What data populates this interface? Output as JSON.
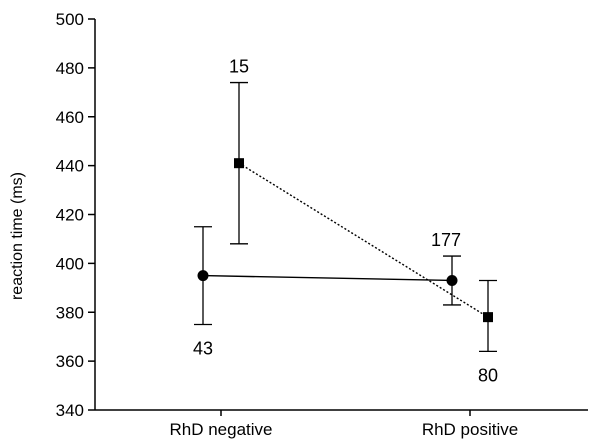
{
  "chart_data": {
    "type": "line",
    "title": "",
    "xlabel": "",
    "ylabel": "reaction time (ms)",
    "ylim": [
      340,
      500
    ],
    "yticks": [
      340,
      360,
      380,
      400,
      420,
      440,
      460,
      480,
      500
    ],
    "categories": [
      "RhD negative",
      "RhD positive"
    ],
    "grid": false,
    "legend": "none",
    "series": [
      {
        "marker": "circle",
        "line_style": "solid",
        "color": "#000000",
        "values": [
          395,
          393
        ],
        "error_low": [
          375,
          383
        ],
        "error_high": [
          415,
          403
        ],
        "n_labels": [
          "43",
          "177"
        ],
        "n_label_side": [
          "below",
          "above"
        ]
      },
      {
        "marker": "square",
        "line_style": "dotted",
        "color": "#000000",
        "values": [
          441,
          378
        ],
        "error_low": [
          408,
          364
        ],
        "error_high": [
          474,
          393
        ],
        "n_labels": [
          "15",
          "80"
        ],
        "n_label_side": [
          "above",
          "below"
        ]
      }
    ]
  }
}
